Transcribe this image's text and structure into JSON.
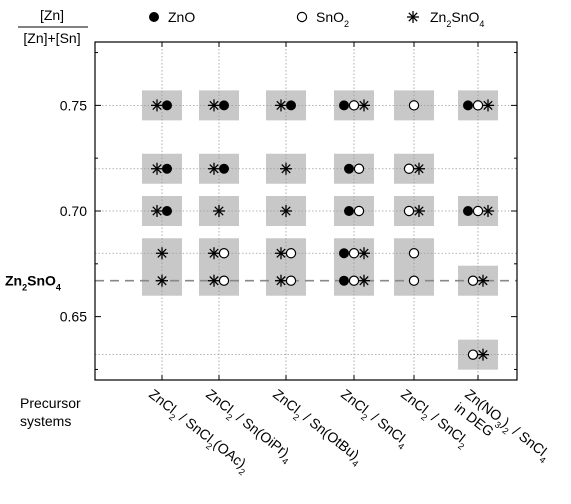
{
  "chart_data": {
    "type": "scatter",
    "ylabel_numerator": "[Zn]",
    "ylabel_denominator": "[Zn]+[Sn]",
    "ylim": [
      0.62,
      0.78
    ],
    "yticks": [
      0.65,
      0.7,
      0.75
    ],
    "ytick_labels": [
      "0.65",
      "0.70",
      "0.75"
    ],
    "y_reference": {
      "value": 0.667,
      "label": "Zn2SnO4",
      "style": "dashed",
      "color": "#888888"
    },
    "y_grid_levels": [
      0.632,
      0.667,
      0.68,
      0.7,
      0.72,
      0.75
    ],
    "xlabel": "Precursor systems",
    "x_categories": [
      "ZnCl2 / SnCl2(OAc)2",
      "ZnCl2 / Sn(OiPr)4",
      "ZnCl2 / Sn(OtBu)4",
      "ZnCl2 / SnCl4",
      "ZnCl2 / SnCl2",
      "Zn(NO3)2 / SnCl4 in DEG"
    ],
    "legend": [
      {
        "marker": "filled-circle",
        "label": "ZnO"
      },
      {
        "marker": "open-circle",
        "label": "SnO2"
      },
      {
        "marker": "asterisk",
        "label": "Zn2SnO4"
      }
    ],
    "points": [
      {
        "x": 0,
        "y": 0.75,
        "phases": [
          "Zn2SnO4",
          "ZnO"
        ]
      },
      {
        "x": 0,
        "y": 0.72,
        "phases": [
          "Zn2SnO4",
          "ZnO"
        ]
      },
      {
        "x": 0,
        "y": 0.7,
        "phases": [
          "Zn2SnO4",
          "ZnO"
        ]
      },
      {
        "x": 0,
        "y": 0.68,
        "phases": [
          "Zn2SnO4"
        ]
      },
      {
        "x": 0,
        "y": 0.667,
        "phases": [
          "Zn2SnO4"
        ]
      },
      {
        "x": 1,
        "y": 0.75,
        "phases": [
          "Zn2SnO4",
          "ZnO"
        ]
      },
      {
        "x": 1,
        "y": 0.72,
        "phases": [
          "Zn2SnO4",
          "ZnO"
        ]
      },
      {
        "x": 1,
        "y": 0.7,
        "phases": [
          "Zn2SnO4"
        ]
      },
      {
        "x": 1,
        "y": 0.68,
        "phases": [
          "Zn2SnO4",
          "SnO2"
        ]
      },
      {
        "x": 1,
        "y": 0.667,
        "phases": [
          "Zn2SnO4",
          "SnO2"
        ]
      },
      {
        "x": 2,
        "y": 0.75,
        "phases": [
          "Zn2SnO4",
          "ZnO"
        ]
      },
      {
        "x": 2,
        "y": 0.72,
        "phases": [
          "Zn2SnO4"
        ]
      },
      {
        "x": 2,
        "y": 0.7,
        "phases": [
          "Zn2SnO4"
        ]
      },
      {
        "x": 2,
        "y": 0.68,
        "phases": [
          "Zn2SnO4",
          "SnO2"
        ]
      },
      {
        "x": 2,
        "y": 0.667,
        "phases": [
          "Zn2SnO4",
          "SnO2"
        ]
      },
      {
        "x": 3,
        "y": 0.75,
        "phases": [
          "ZnO",
          "SnO2",
          "Zn2SnO4"
        ]
      },
      {
        "x": 3,
        "y": 0.72,
        "phases": [
          "ZnO",
          "SnO2"
        ]
      },
      {
        "x": 3,
        "y": 0.7,
        "phases": [
          "ZnO",
          "SnO2"
        ]
      },
      {
        "x": 3,
        "y": 0.68,
        "phases": [
          "ZnO",
          "SnO2",
          "Zn2SnO4"
        ]
      },
      {
        "x": 3,
        "y": 0.667,
        "phases": [
          "ZnO",
          "SnO2",
          "Zn2SnO4"
        ]
      },
      {
        "x": 4,
        "y": 0.75,
        "phases": [
          "SnO2"
        ]
      },
      {
        "x": 4,
        "y": 0.72,
        "phases": [
          "SnO2",
          "Zn2SnO4"
        ]
      },
      {
        "x": 4,
        "y": 0.7,
        "phases": [
          "SnO2",
          "Zn2SnO4"
        ]
      },
      {
        "x": 4,
        "y": 0.68,
        "phases": [
          "SnO2"
        ]
      },
      {
        "x": 4,
        "y": 0.667,
        "phases": [
          "SnO2"
        ]
      },
      {
        "x": 5,
        "y": 0.75,
        "phases": [
          "ZnO",
          "SnO2",
          "Zn2SnO4"
        ]
      },
      {
        "x": 5,
        "y": 0.7,
        "phases": [
          "ZnO",
          "SnO2",
          "Zn2SnO4"
        ]
      },
      {
        "x": 5,
        "y": 0.667,
        "phases": [
          "SnO2",
          "Zn2SnO4"
        ]
      },
      {
        "x": 5,
        "y": 0.632,
        "phases": [
          "SnO2",
          "Zn2SnO4"
        ]
      }
    ],
    "shaded_blocks": [
      {
        "x": 0,
        "y_from": 0.75,
        "y_to": 0.75
      },
      {
        "x": 0,
        "y_from": 0.72,
        "y_to": 0.72
      },
      {
        "x": 0,
        "y_from": 0.7,
        "y_to": 0.7
      },
      {
        "x": 0,
        "y_from": 0.667,
        "y_to": 0.68
      },
      {
        "x": 1,
        "y_from": 0.75,
        "y_to": 0.75
      },
      {
        "x": 1,
        "y_from": 0.72,
        "y_to": 0.72
      },
      {
        "x": 1,
        "y_from": 0.7,
        "y_to": 0.7
      },
      {
        "x": 1,
        "y_from": 0.667,
        "y_to": 0.68
      },
      {
        "x": 2,
        "y_from": 0.75,
        "y_to": 0.75
      },
      {
        "x": 2,
        "y_from": 0.72,
        "y_to": 0.72
      },
      {
        "x": 2,
        "y_from": 0.7,
        "y_to": 0.7
      },
      {
        "x": 2,
        "y_from": 0.667,
        "y_to": 0.68
      },
      {
        "x": 3,
        "y_from": 0.75,
        "y_to": 0.75
      },
      {
        "x": 3,
        "y_from": 0.72,
        "y_to": 0.72
      },
      {
        "x": 3,
        "y_from": 0.7,
        "y_to": 0.7
      },
      {
        "x": 3,
        "y_from": 0.667,
        "y_to": 0.68
      },
      {
        "x": 4,
        "y_from": 0.75,
        "y_to": 0.75
      },
      {
        "x": 4,
        "y_from": 0.72,
        "y_to": 0.72
      },
      {
        "x": 4,
        "y_from": 0.7,
        "y_to": 0.7
      },
      {
        "x": 4,
        "y_from": 0.667,
        "y_to": 0.68
      },
      {
        "x": 5,
        "y_from": 0.75,
        "y_to": 0.75
      },
      {
        "x": 5,
        "y_from": 0.7,
        "y_to": 0.7
      },
      {
        "x": 5,
        "y_from": 0.667,
        "y_to": 0.667
      },
      {
        "x": 5,
        "y_from": 0.632,
        "y_to": 0.632
      }
    ],
    "colors": {
      "block": "#c8c8c8",
      "grid": "#9a9a9a",
      "reference": "#888888",
      "ink": "#000000"
    },
    "grid": true,
    "legend_position": "top"
  }
}
